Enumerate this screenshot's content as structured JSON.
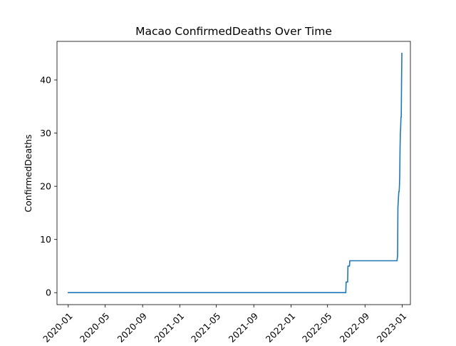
{
  "chart_data": {
    "type": "line",
    "title": "Macao  ConfirmedDeaths Over Time",
    "xlabel": "",
    "ylabel": "ConfirmedDeaths",
    "xlim": [
      "2019-11-25",
      "2023-01-28"
    ],
    "ylim": [
      -2.25,
      47.25
    ],
    "grid": false,
    "x_ticks": [
      "2020-01",
      "2020-05",
      "2020-09",
      "2021-01",
      "2021-05",
      "2021-09",
      "2022-01",
      "2022-05",
      "2022-09",
      "2023-01"
    ],
    "y_ticks": [
      0,
      10,
      20,
      30,
      40
    ],
    "colors": {
      "line": "#1f77b4"
    },
    "series": [
      {
        "x": [
          "2020-01-01",
          "2022-06-30",
          "2022-07-01",
          "2022-07-06",
          "2022-07-07",
          "2022-07-12",
          "2022-07-13",
          "2022-12-15",
          "2022-12-17",
          "2022-12-18",
          "2022-12-19",
          "2022-12-20",
          "2022-12-21",
          "2022-12-22",
          "2022-12-23",
          "2022-12-24",
          "2022-12-25",
          "2022-12-26",
          "2022-12-27",
          "2022-12-28",
          "2022-12-29",
          "2022-12-30",
          "2022-12-31"
        ],
        "values": [
          0,
          0,
          2,
          2,
          5,
          5,
          6,
          6,
          7,
          16,
          17,
          18,
          19,
          19,
          20,
          22,
          27,
          30,
          31,
          33,
          33,
          40,
          45
        ]
      }
    ]
  }
}
